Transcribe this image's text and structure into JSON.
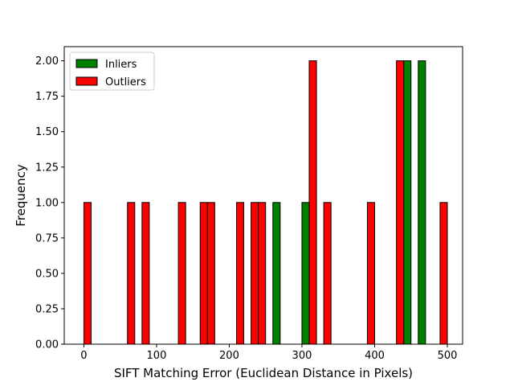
{
  "chart_data": {
    "type": "bar",
    "xlabel": "SIFT Matching Error (Euclidean Distance in Pixels)",
    "ylabel": "Frequency",
    "xlim": [
      -27,
      521
    ],
    "ylim": [
      0,
      2.1
    ],
    "x_ticks": [
      0,
      100,
      200,
      300,
      400,
      500
    ],
    "y_ticks": [
      0.0,
      0.25,
      0.5,
      0.75,
      1.0,
      1.25,
      1.5,
      1.75,
      2.0
    ],
    "legend_position": "top-left",
    "series": [
      {
        "name": "Inliers",
        "color": "#008000",
        "bins": [
          [
            260,
            270,
            1
          ],
          [
            300,
            310,
            1
          ],
          [
            440,
            450,
            2
          ],
          [
            460,
            470,
            2
          ]
        ]
      },
      {
        "name": "Outliers",
        "color": "#ff0000",
        "bins": [
          [
            0,
            10,
            1
          ],
          [
            60,
            70,
            1
          ],
          [
            80,
            90,
            1
          ],
          [
            130,
            140,
            1
          ],
          [
            160,
            170,
            1
          ],
          [
            170,
            180,
            1
          ],
          [
            210,
            220,
            1
          ],
          [
            230,
            240,
            1
          ],
          [
            240,
            250,
            1
          ],
          [
            310,
            320,
            2
          ],
          [
            330,
            340,
            1
          ],
          [
            390,
            400,
            1
          ],
          [
            430,
            440,
            2
          ],
          [
            490,
            500,
            1
          ]
        ]
      }
    ]
  }
}
